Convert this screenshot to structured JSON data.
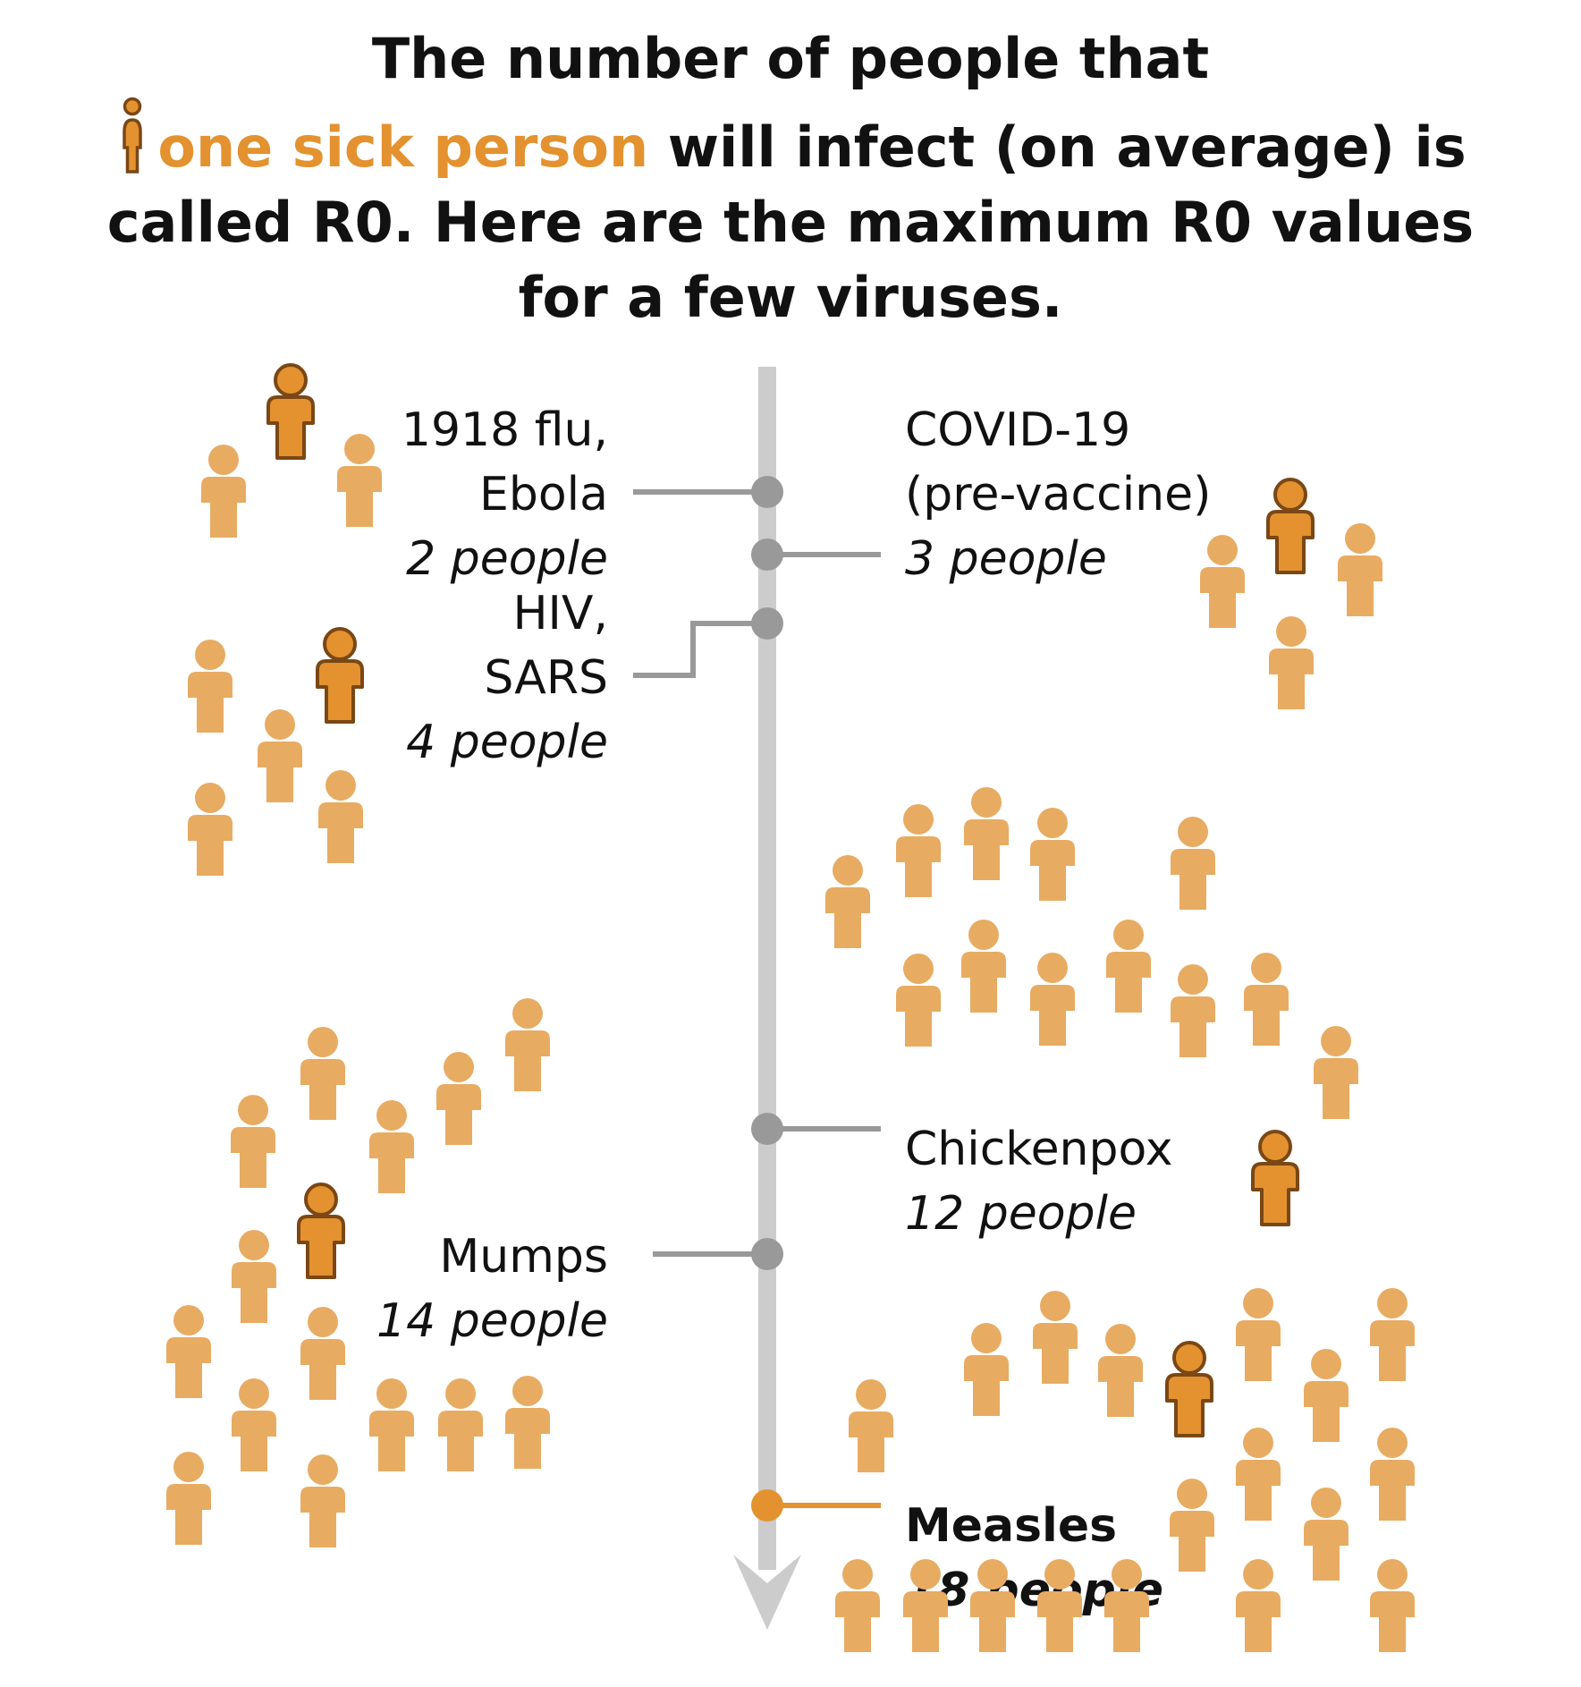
{
  "title": {
    "before": "The number of people that",
    "highlight": "one sick person",
    "after": "will infect (on average) is called R0. Here are the maximum R0 values for a few viruses."
  },
  "colors": {
    "infected": "#e8ab62",
    "patient_zero_fill": "#e3922f",
    "patient_zero_stroke": "#7a4715",
    "timeline": "#cccccc",
    "leader": "#999999",
    "highlight": "#e3922f",
    "text": "#111111"
  },
  "chart_data": {
    "type": "pictogram",
    "unit": "people",
    "series": [
      {
        "name": "1918 flu, Ebola",
        "label_lines": [
          "1918 flu,",
          "Ebola"
        ],
        "value": 2,
        "value_label": "2 people",
        "side": "left",
        "highlight": false
      },
      {
        "name": "COVID-19 (pre-vaccine)",
        "label_lines": [
          "COVID-19",
          "(pre-vaccine)"
        ],
        "value": 3,
        "value_label": "3 people",
        "side": "right",
        "highlight": false
      },
      {
        "name": "HIV, SARS",
        "label_lines": [
          "HIV,",
          "SARS"
        ],
        "value": 4,
        "value_label": "4 people",
        "side": "left",
        "highlight": false
      },
      {
        "name": "Chickenpox",
        "label_lines": [
          "Chickenpox"
        ],
        "value": 12,
        "value_label": "12 people",
        "side": "right",
        "highlight": false
      },
      {
        "name": "Mumps",
        "label_lines": [
          "Mumps"
        ],
        "value": 14,
        "value_label": "14 people",
        "side": "left",
        "highlight": false
      },
      {
        "name": "Measles",
        "label_lines": [
          "Measles"
        ],
        "value": 18,
        "value_label": "18 people",
        "side": "right",
        "highlight": true
      }
    ]
  }
}
